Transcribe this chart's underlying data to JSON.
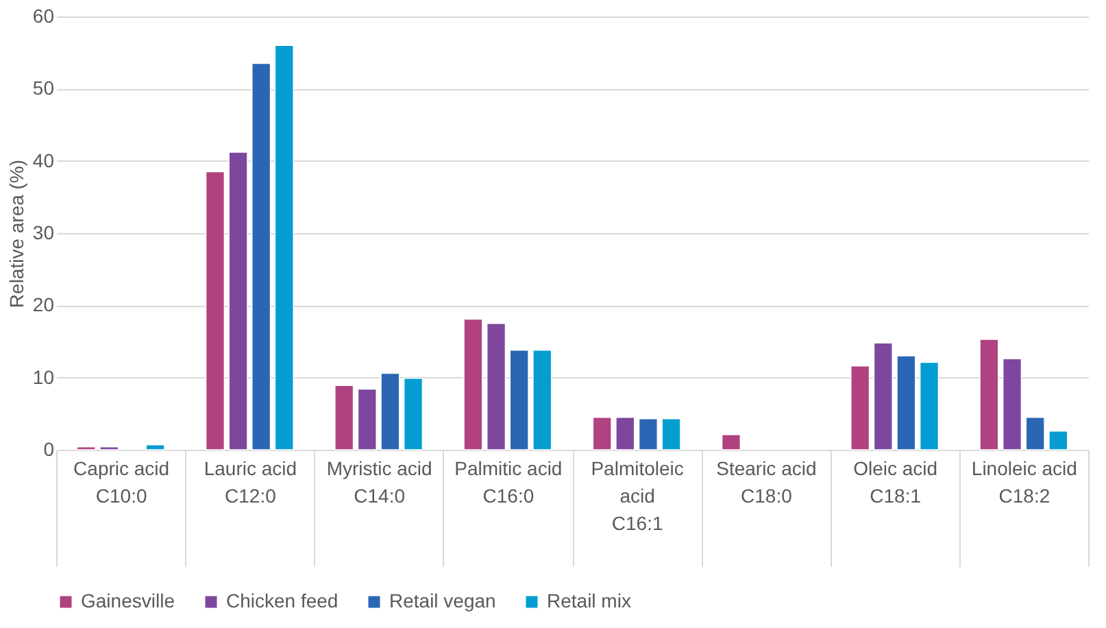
{
  "chart_data": {
    "type": "bar",
    "ylabel": "Relative area (%)",
    "categories": [
      "Capric acid\nC10:0",
      "Lauric acid\nC12:0",
      "Myristic acid\nC14:0",
      "Palmitic acid\nC16:0",
      "Palmitoleic\nacid\nC16:1",
      "Stearic acid\nC18:0",
      "Oleic acid\nC18:1",
      "Linoleic acid\nC18:2"
    ],
    "series": [
      {
        "name": "Gainesville",
        "color": "#b0427f",
        "values": [
          0.4,
          38.5,
          8.9,
          18.1,
          4.5,
          2.1,
          11.6,
          15.3
        ]
      },
      {
        "name": "Chicken feed",
        "color": "#7e479e",
        "values": [
          0.4,
          41.2,
          8.4,
          17.5,
          4.5,
          null,
          14.8,
          12.6
        ]
      },
      {
        "name": "Retail vegan",
        "color": "#2a66b3",
        "values": [
          null,
          53.5,
          10.6,
          13.8,
          4.3,
          null,
          13.0,
          4.5
        ]
      },
      {
        "name": "Retail mix",
        "color": "#049dd1",
        "values": [
          0.7,
          56.0,
          9.9,
          13.8,
          4.3,
          null,
          12.1,
          2.6
        ]
      }
    ],
    "ylim": [
      0,
      60
    ],
    "yticks": [
      0,
      10,
      20,
      30,
      40,
      50,
      60
    ],
    "grid": "y",
    "legend": "bottom"
  }
}
